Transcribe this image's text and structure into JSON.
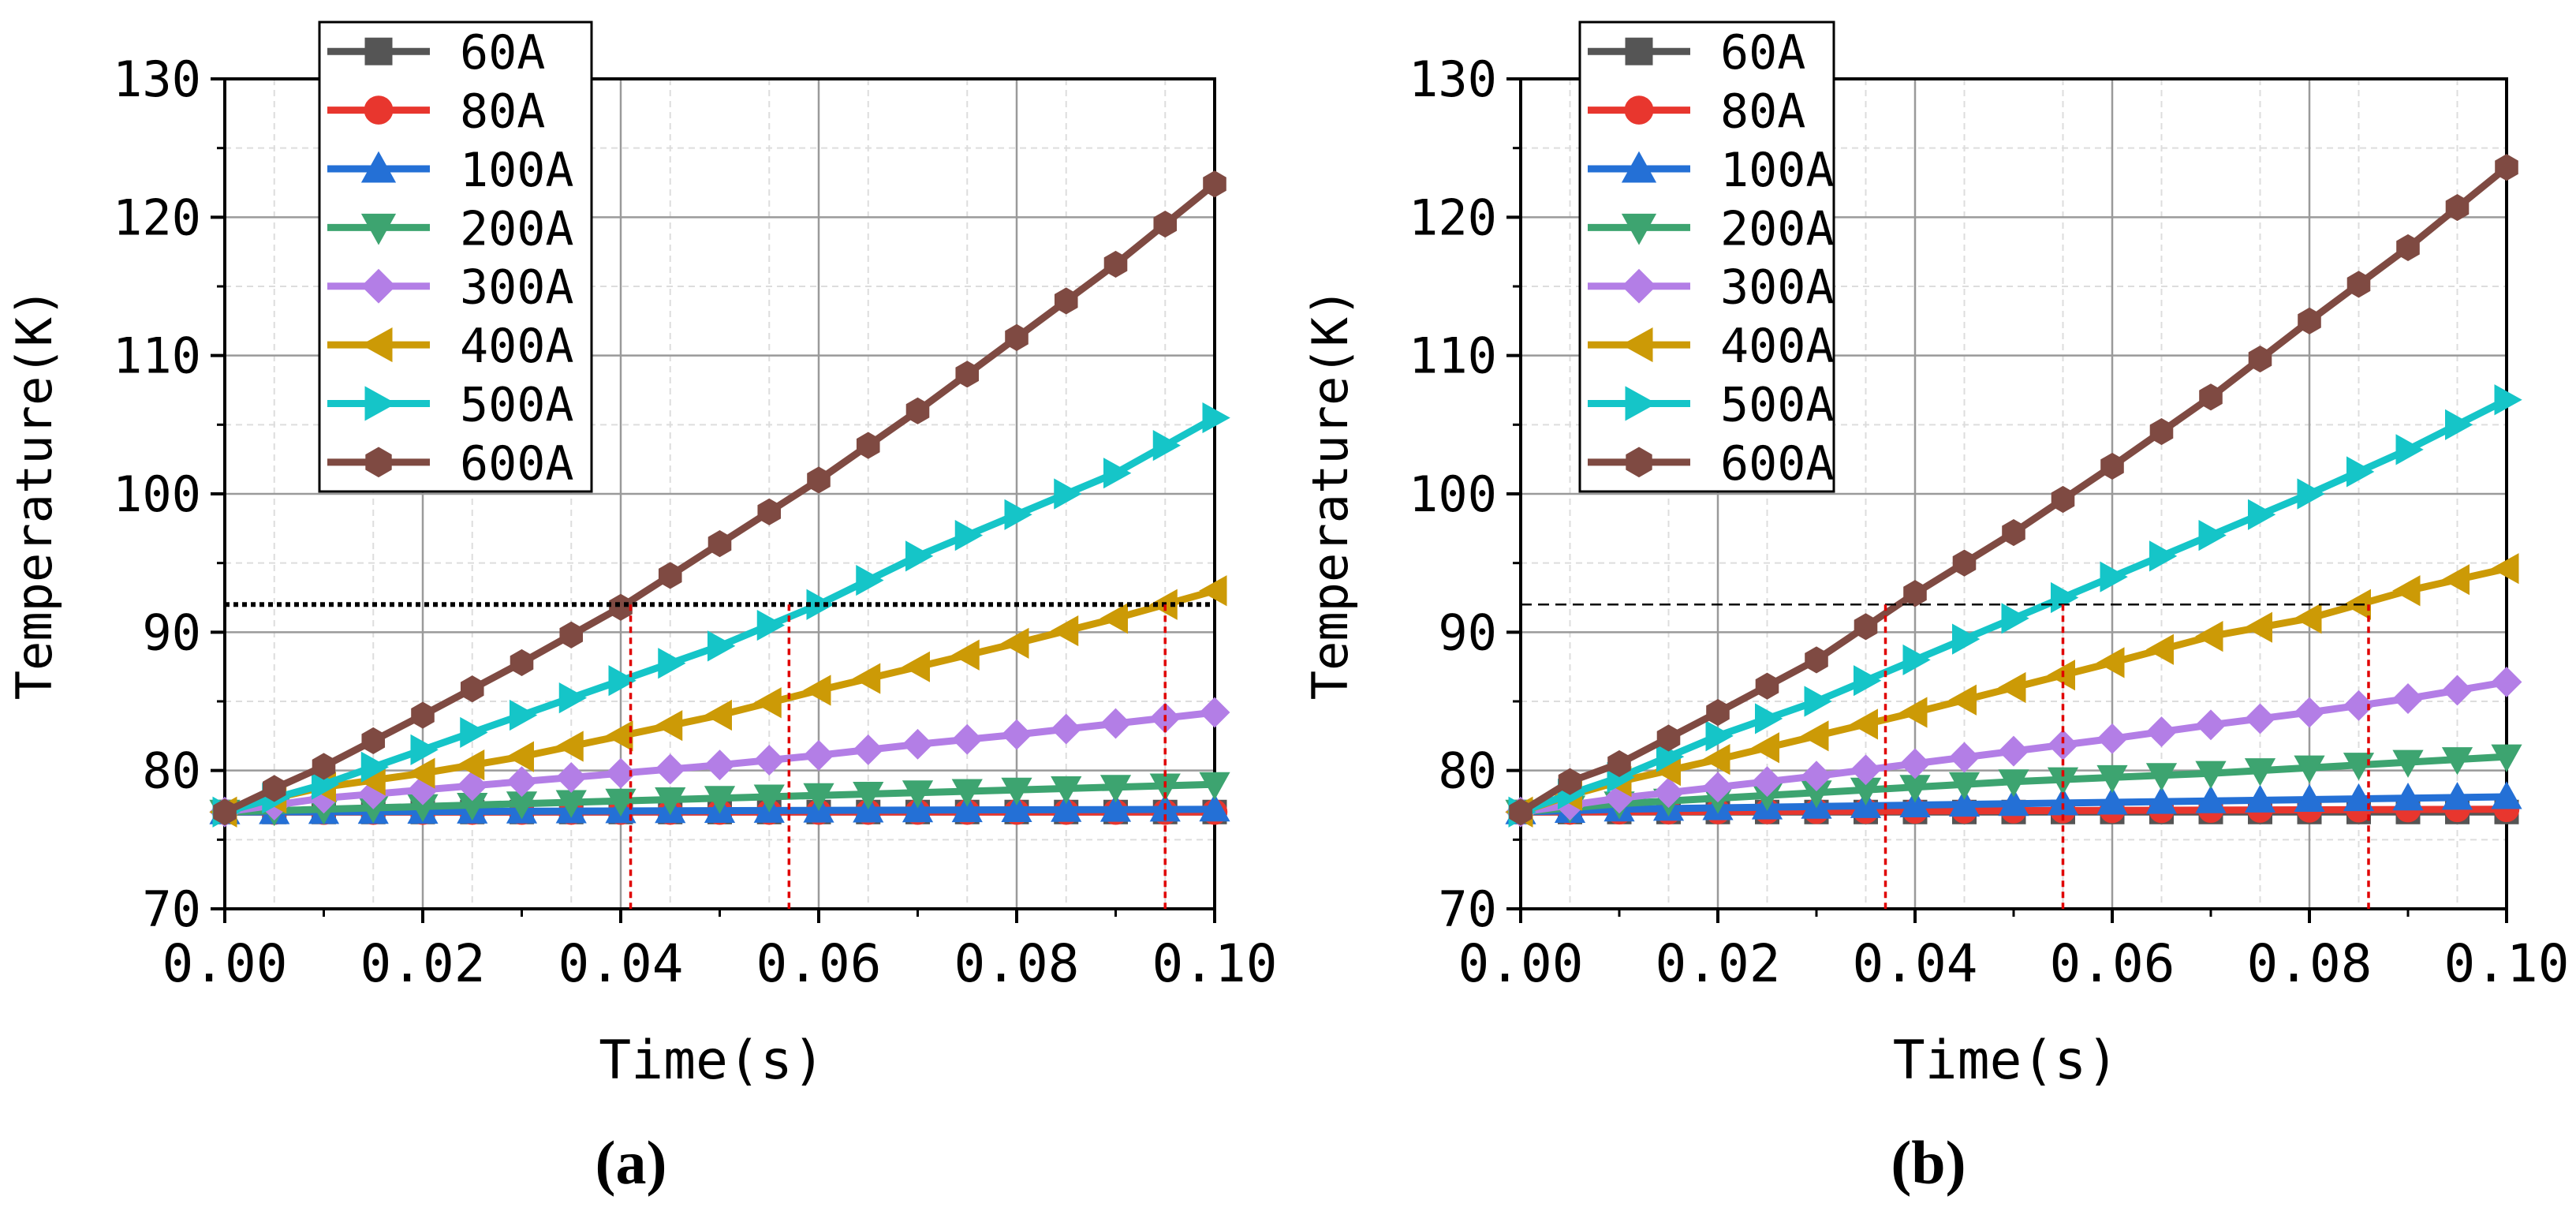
{
  "chart_data": [
    {
      "type": "line",
      "panel_label": "(a)",
      "xlabel": "Time(s)",
      "ylabel": "Temperature(K)",
      "xlim": [
        0,
        0.1
      ],
      "ylim": [
        70,
        130
      ],
      "xticks": [
        "0.00",
        "0.02",
        "0.04",
        "0.06",
        "0.08",
        "0.10"
      ],
      "yticks": [
        "70",
        "80",
        "90",
        "100",
        "110",
        "120",
        "130"
      ],
      "grid": true,
      "legend_position": "top-left",
      "reference_line": {
        "y": 92,
        "style": "dotted",
        "color": "#000000",
        "x_range": [
          0,
          0.1
        ]
      },
      "markers_x": [
        0.041,
        0.057,
        0.095
      ],
      "series": [
        {
          "name": "60A",
          "color": "#555555",
          "marker": "square",
          "x": [
            0,
            0.1
          ],
          "y": [
            77,
            77
          ]
        },
        {
          "name": "80A",
          "color": "#e8362e",
          "marker": "circle",
          "x": [
            0,
            0.1
          ],
          "y": [
            77,
            77
          ]
        },
        {
          "name": "100A",
          "color": "#2470d6",
          "marker": "triangle-up",
          "x": [
            0,
            0.1
          ],
          "y": [
            77,
            77.2
          ]
        },
        {
          "name": "200A",
          "color": "#3da470",
          "marker": "triangle-down",
          "x": [
            0,
            0.005,
            0.01,
            0.02,
            0.03,
            0.04,
            0.05,
            0.06,
            0.07,
            0.08,
            0.09,
            0.1
          ],
          "y": [
            77,
            77.1,
            77.2,
            77.4,
            77.6,
            77.8,
            78.0,
            78.2,
            78.4,
            78.6,
            78.8,
            79.0
          ]
        },
        {
          "name": "300A",
          "color": "#b37ee6",
          "marker": "diamond",
          "x": [
            0,
            0.005,
            0.01,
            0.02,
            0.03,
            0.04,
            0.05,
            0.06,
            0.07,
            0.08,
            0.09,
            0.1
          ],
          "y": [
            77,
            77.5,
            78.0,
            78.6,
            79.2,
            79.8,
            80.4,
            81.1,
            81.9,
            82.6,
            83.4,
            84.2
          ]
        },
        {
          "name": "400A",
          "color": "#cc9a06",
          "marker": "triangle-left",
          "x": [
            0,
            0.005,
            0.01,
            0.02,
            0.03,
            0.04,
            0.05,
            0.06,
            0.07,
            0.08,
            0.09,
            0.1
          ],
          "y": [
            77,
            78.0,
            78.8,
            79.8,
            81.0,
            82.5,
            84.0,
            85.8,
            87.5,
            89.2,
            91.0,
            93.0
          ]
        },
        {
          "name": "500A",
          "color": "#15c5c8",
          "marker": "triangle-right",
          "x": [
            0,
            0.005,
            0.01,
            0.02,
            0.03,
            0.04,
            0.05,
            0.06,
            0.07,
            0.08,
            0.09,
            0.1
          ],
          "y": [
            77,
            78.0,
            79.0,
            81.5,
            84.0,
            86.5,
            89.0,
            92.0,
            95.5,
            98.5,
            101.5,
            105.5
          ]
        },
        {
          "name": "600A",
          "color": "#7f4a42",
          "marker": "hexagon",
          "x": [
            0,
            0.005,
            0.01,
            0.02,
            0.03,
            0.04,
            0.05,
            0.06,
            0.07,
            0.08,
            0.09,
            0.1
          ],
          "y": [
            77,
            78.7,
            80.3,
            84.0,
            87.8,
            91.8,
            96.4,
            101.0,
            106.0,
            111.3,
            116.6,
            122.4
          ]
        }
      ]
    },
    {
      "type": "line",
      "panel_label": "(b)",
      "xlabel": "Time(s)",
      "ylabel": "Temperature(K)",
      "xlim": [
        0,
        0.1
      ],
      "ylim": [
        70,
        130
      ],
      "xticks": [
        "0.00",
        "0.02",
        "0.04",
        "0.06",
        "0.08",
        "0.10"
      ],
      "yticks": [
        "70",
        "80",
        "90",
        "100",
        "110",
        "120",
        "130"
      ],
      "grid": true,
      "legend_position": "top-left",
      "reference_line": {
        "y": 92,
        "style": "dashed",
        "color": "#000000",
        "x_range": [
          0,
          0.086
        ]
      },
      "markers_x": [
        0.037,
        0.055,
        0.086
      ],
      "series": [
        {
          "name": "60A",
          "color": "#555555",
          "marker": "square",
          "x": [
            0,
            0.1
          ],
          "y": [
            77,
            77
          ]
        },
        {
          "name": "80A",
          "color": "#e8362e",
          "marker": "circle",
          "x": [
            0,
            0.1
          ],
          "y": [
            77,
            77.2
          ]
        },
        {
          "name": "100A",
          "color": "#2470d6",
          "marker": "triangle-up",
          "x": [
            0,
            0.005,
            0.01,
            0.02,
            0.03,
            0.04,
            0.05,
            0.06,
            0.07,
            0.08,
            0.09,
            0.1
          ],
          "y": [
            77,
            77.1,
            77.2,
            77.3,
            77.4,
            77.5,
            77.6,
            77.7,
            77.8,
            77.9,
            78.0,
            78.1
          ]
        },
        {
          "name": "200A",
          "color": "#3da470",
          "marker": "triangle-down",
          "x": [
            0,
            0.005,
            0.01,
            0.02,
            0.03,
            0.04,
            0.05,
            0.06,
            0.07,
            0.08,
            0.09,
            0.1
          ],
          "y": [
            77,
            77.3,
            77.6,
            78.0,
            78.4,
            78.8,
            79.2,
            79.5,
            79.8,
            80.2,
            80.6,
            81.0
          ]
        },
        {
          "name": "300A",
          "color": "#b37ee6",
          "marker": "diamond",
          "x": [
            0,
            0.005,
            0.01,
            0.02,
            0.03,
            0.04,
            0.05,
            0.06,
            0.07,
            0.08,
            0.09,
            0.1
          ],
          "y": [
            77,
            77.5,
            78.0,
            78.8,
            79.6,
            80.5,
            81.4,
            82.3,
            83.3,
            84.2,
            85.2,
            86.4
          ]
        },
        {
          "name": "400A",
          "color": "#cc9a06",
          "marker": "triangle-left",
          "x": [
            0,
            0.005,
            0.01,
            0.02,
            0.03,
            0.04,
            0.05,
            0.06,
            0.07,
            0.08,
            0.09,
            0.1
          ],
          "y": [
            77,
            78.2,
            79.2,
            80.8,
            82.5,
            84.2,
            86.0,
            87.8,
            89.7,
            91.0,
            93.0,
            94.6
          ]
        },
        {
          "name": "500A",
          "color": "#15c5c8",
          "marker": "triangle-right",
          "x": [
            0,
            0.005,
            0.01,
            0.02,
            0.03,
            0.04,
            0.05,
            0.06,
            0.07,
            0.08,
            0.09,
            0.1
          ],
          "y": [
            77,
            78.3,
            79.5,
            82.5,
            85.0,
            88.0,
            91.0,
            94.0,
            97.0,
            100.0,
            103.2,
            106.8
          ]
        },
        {
          "name": "600A",
          "color": "#7f4a42",
          "marker": "hexagon",
          "x": [
            0,
            0.005,
            0.01,
            0.02,
            0.03,
            0.04,
            0.05,
            0.06,
            0.07,
            0.08,
            0.09,
            0.1
          ],
          "y": [
            77,
            79.2,
            80.5,
            84.2,
            88.0,
            92.8,
            97.2,
            102.0,
            107.0,
            112.5,
            117.8,
            123.6
          ]
        }
      ]
    }
  ]
}
